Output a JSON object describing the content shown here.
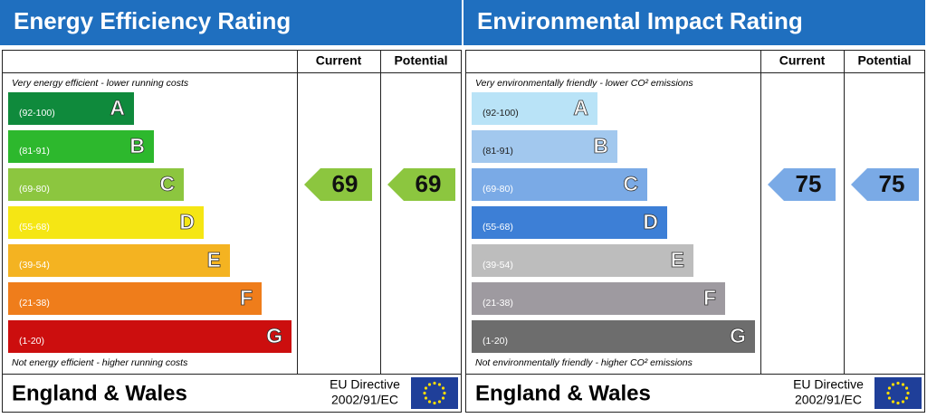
{
  "panels": [
    {
      "title": "Energy Efficiency Rating",
      "headers": [
        "Current",
        "Potential"
      ],
      "top_note": "Very energy efficient - lower running costs",
      "bottom_note": "Not energy efficient - higher running costs",
      "bands": [
        {
          "range": "(92-100)",
          "letter": "A",
          "color": "#0f8a3c"
        },
        {
          "range": "(81-91)",
          "letter": "B",
          "color": "#2db82d"
        },
        {
          "range": "(69-80)",
          "letter": "C",
          "color": "#8cc63f"
        },
        {
          "range": "(55-68)",
          "letter": "D",
          "color": "#f5e614"
        },
        {
          "range": "(39-54)",
          "letter": "E",
          "color": "#f4b321"
        },
        {
          "range": "(21-38)",
          "letter": "F",
          "color": "#ef7d1b"
        },
        {
          "range": "(1-20)",
          "letter": "G",
          "color": "#cc0e0e"
        }
      ],
      "current": 69,
      "potential": 69,
      "footer": "England & Wales",
      "directive": [
        "EU Directive",
        "2002/91/EC"
      ]
    },
    {
      "title": "Environmental Impact Rating",
      "headers": [
        "Current",
        "Potential"
      ],
      "top_note": "Very environmentally friendly - lower CO² emissions",
      "bottom_note": "Not environmentally friendly - higher CO² emissions",
      "bands": [
        {
          "range": "(92-100)",
          "letter": "A",
          "color": "#b9e3f7"
        },
        {
          "range": "(81-91)",
          "letter": "B",
          "color": "#a2c8ee"
        },
        {
          "range": "(69-80)",
          "letter": "C",
          "color": "#7aaae6"
        },
        {
          "range": "(55-68)",
          "letter": "D",
          "color": "#3d7fd6"
        },
        {
          "range": "(39-54)",
          "letter": "E",
          "color": "#bdbdbd"
        },
        {
          "range": "(21-38)",
          "letter": "F",
          "color": "#9e9aa0"
        },
        {
          "range": "(1-20)",
          "letter": "G",
          "color": "#6d6d6d"
        }
      ],
      "current": 75,
      "potential": 75,
      "footer": "England & Wales",
      "directive": [
        "EU Directive",
        "2002/91/EC"
      ]
    }
  ]
}
